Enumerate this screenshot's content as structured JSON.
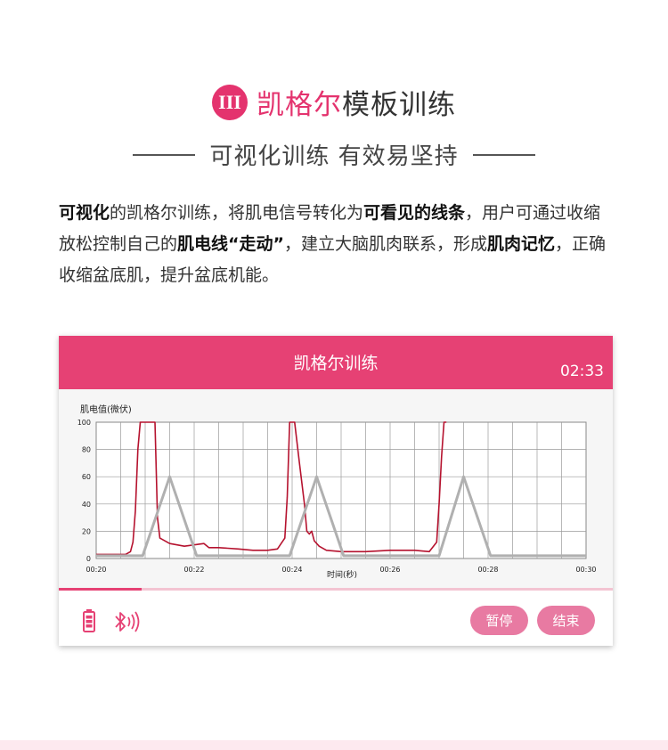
{
  "heading": {
    "badge": "III",
    "title_accent": "凯格尔",
    "title_rest": "模板训练"
  },
  "subheading": "可视化训练 有效易坚持",
  "paragraph": {
    "p1": "可视化",
    "p2": "的凯格尔训练，将肌电信号转化为",
    "p3": "可看见的线条",
    "p4": "，用户可通过收缩放松控制自己的",
    "p5": "肌电线",
    "p6": "“走动”",
    "p7": "，建立大脑肌肉联系，形成",
    "p8": "肌肉记忆",
    "p9": "，正确收缩盆底肌，提升盆底机能。"
  },
  "app": {
    "title": "凯格尔训练",
    "timer": "02:33",
    "progress": 0.15,
    "pause_label": "暂停",
    "end_label": "结束",
    "icons": [
      "battery-icon",
      "bluetooth-icon"
    ],
    "colors": {
      "header": "#e64174",
      "emg_line": "#b5122e",
      "template_line": "#b0b0b0"
    }
  },
  "chart_data": {
    "type": "line",
    "ylabel": "肌电值(微伏)",
    "xlabel": "时间(秒)",
    "ylim": [
      0,
      100
    ],
    "yticks": [
      "0",
      "20",
      "40",
      "60",
      "80",
      "100"
    ],
    "xlim": [
      20,
      30
    ],
    "xticks": [
      "00:20",
      "00:22",
      "00:24",
      "00:26",
      "00:28",
      "00:30"
    ],
    "grid": true,
    "series": [
      {
        "kind": "emg",
        "x": [
          20.0,
          20.6,
          20.7,
          20.75,
          20.8,
          20.85,
          20.9,
          20.95,
          21.2,
          21.25,
          21.3,
          21.5,
          21.8,
          22.0,
          22.2,
          22.3,
          22.5,
          22.9,
          23.2,
          23.5,
          23.7,
          23.85,
          23.9,
          23.95,
          24.05,
          24.15,
          24.25,
          24.3,
          24.35,
          24.4,
          24.45,
          24.55,
          24.7,
          25.0,
          25.5,
          26.0,
          26.5,
          26.8,
          26.95,
          27.0,
          27.05,
          27.1,
          27.15
        ],
        "y": [
          3,
          3,
          5,
          12,
          35,
          80,
          100,
          100,
          100,
          30,
          15,
          11,
          9,
          10,
          11,
          8,
          8,
          7,
          6,
          6,
          7,
          15,
          45,
          100,
          100,
          70,
          40,
          20,
          18,
          20,
          13,
          9,
          6,
          5,
          5,
          6,
          6,
          5,
          12,
          40,
          75,
          100,
          100
        ]
      },
      {
        "kind": "template",
        "x": [
          20.0,
          20.95,
          21.5,
          22.05,
          23.95,
          24.5,
          25.05,
          27.0,
          27.5,
          28.05,
          30.0
        ],
        "y": [
          2,
          2,
          60,
          2,
          2,
          60,
          2,
          2,
          60,
          2,
          2
        ]
      }
    ]
  }
}
